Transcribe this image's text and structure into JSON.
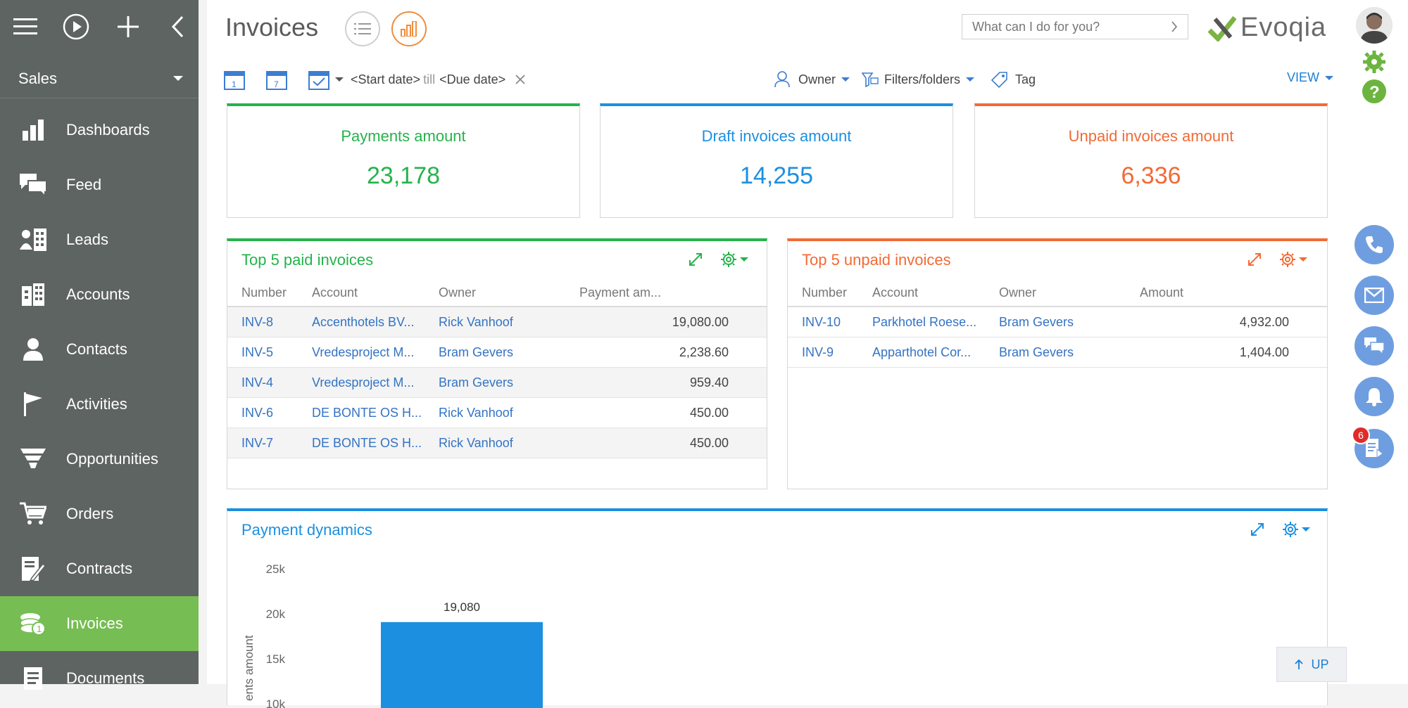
{
  "sidebar": {
    "workspace": "Sales",
    "items": [
      {
        "label": "Dashboards",
        "icon": "dashboards-icon"
      },
      {
        "label": "Feed",
        "icon": "feed-icon"
      },
      {
        "label": "Leads",
        "icon": "leads-icon"
      },
      {
        "label": "Accounts",
        "icon": "accounts-icon"
      },
      {
        "label": "Contacts",
        "icon": "contacts-icon"
      },
      {
        "label": "Activities",
        "icon": "activities-icon"
      },
      {
        "label": "Opportunities",
        "icon": "opportunities-icon"
      },
      {
        "label": "Orders",
        "icon": "orders-icon"
      },
      {
        "label": "Contracts",
        "icon": "contracts-icon"
      },
      {
        "label": "Invoices",
        "icon": "invoices-icon",
        "active": true
      },
      {
        "label": "Documents",
        "icon": "documents-icon"
      }
    ]
  },
  "header": {
    "title": "Invoices",
    "search_placeholder": "What can I do for you?",
    "logo_text": "Evoqia"
  },
  "filters": {
    "start_date": "<Start date>",
    "till": "till",
    "due_date": "<Due date>",
    "owner": "Owner",
    "filters_folders": "Filters/folders",
    "tag": "Tag",
    "view": "VIEW"
  },
  "metrics": [
    {
      "title": "Payments amount",
      "value": "23,178",
      "color": "#25b34b"
    },
    {
      "title": "Draft invoices amount",
      "value": "14,255",
      "color": "#1c8fe0"
    },
    {
      "title": "Unpaid invoices amount",
      "value": "6,336",
      "color": "#f26a35"
    }
  ],
  "paid_panel": {
    "title": "Top 5 paid invoices",
    "color": "#25b34b",
    "columns": [
      "Number",
      "Account",
      "Owner",
      "Payment am..."
    ],
    "rows": [
      [
        "INV-8",
        "Accenthotels BV...",
        "Rick Vanhoof",
        "19,080.00"
      ],
      [
        "INV-5",
        "Vredesproject M...",
        "Bram Gevers",
        "2,238.60"
      ],
      [
        "INV-4",
        "Vredesproject M...",
        "Bram Gevers",
        "959.40"
      ],
      [
        "INV-6",
        "DE BONTE OS H...",
        "Rick Vanhoof",
        "450.00"
      ],
      [
        "INV-7",
        "DE BONTE OS H...",
        "Rick Vanhoof",
        "450.00"
      ]
    ]
  },
  "unpaid_panel": {
    "title": "Top 5 unpaid invoices",
    "color": "#f26a35",
    "columns": [
      "Number",
      "Account",
      "Owner",
      "Amount"
    ],
    "rows": [
      [
        "INV-10",
        "Parkhotel Roese...",
        "Bram Gevers",
        "4,932.00"
      ],
      [
        "INV-9",
        "Apparthotel Cor...",
        "Bram Gevers",
        "1,404.00"
      ]
    ]
  },
  "chart_panel": {
    "title": "Payment dynamics",
    "color": "#1c8fe0"
  },
  "chart_data": {
    "type": "bar",
    "title": "Payment dynamics",
    "ylabel": "ents amount",
    "yticks": [
      "25k",
      "20k",
      "15k",
      "10k"
    ],
    "ylim": [
      10000,
      25000
    ],
    "categories": [
      ""
    ],
    "values": [
      19080
    ],
    "data_labels": [
      "19,080"
    ],
    "bar_color": "#1c8fe0",
    "grid": false
  },
  "rail": {
    "notification_count": "6"
  },
  "up_button": "UP"
}
